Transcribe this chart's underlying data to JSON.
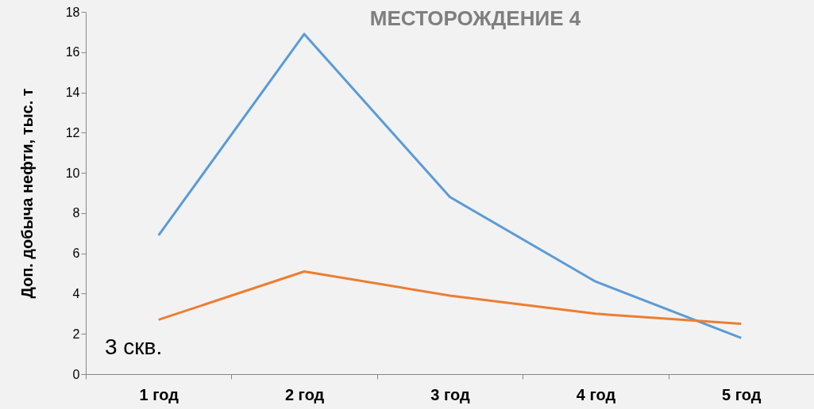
{
  "chart_data": {
    "type": "line",
    "title": "МЕСТОРОЖДЕНИЕ 4",
    "ylabel": "Доп. добыча нефти, тыс. т",
    "categories": [
      "1 год",
      "2 год",
      "3 год",
      "4 год",
      "5 год"
    ],
    "series": [
      {
        "color": "#5b9bd5",
        "values": [
          6.9,
          16.9,
          8.8,
          4.6,
          1.8
        ]
      },
      {
        "color": "#ed7d31",
        "values": [
          2.7,
          5.1,
          3.9,
          3.0,
          2.5
        ]
      }
    ],
    "ylim": [
      0,
      18
    ],
    "yticks": [
      0,
      2,
      4,
      6,
      8,
      10,
      12,
      14,
      16,
      18
    ],
    "grid": false,
    "legend": false,
    "annotations": [
      "3 скв."
    ]
  }
}
